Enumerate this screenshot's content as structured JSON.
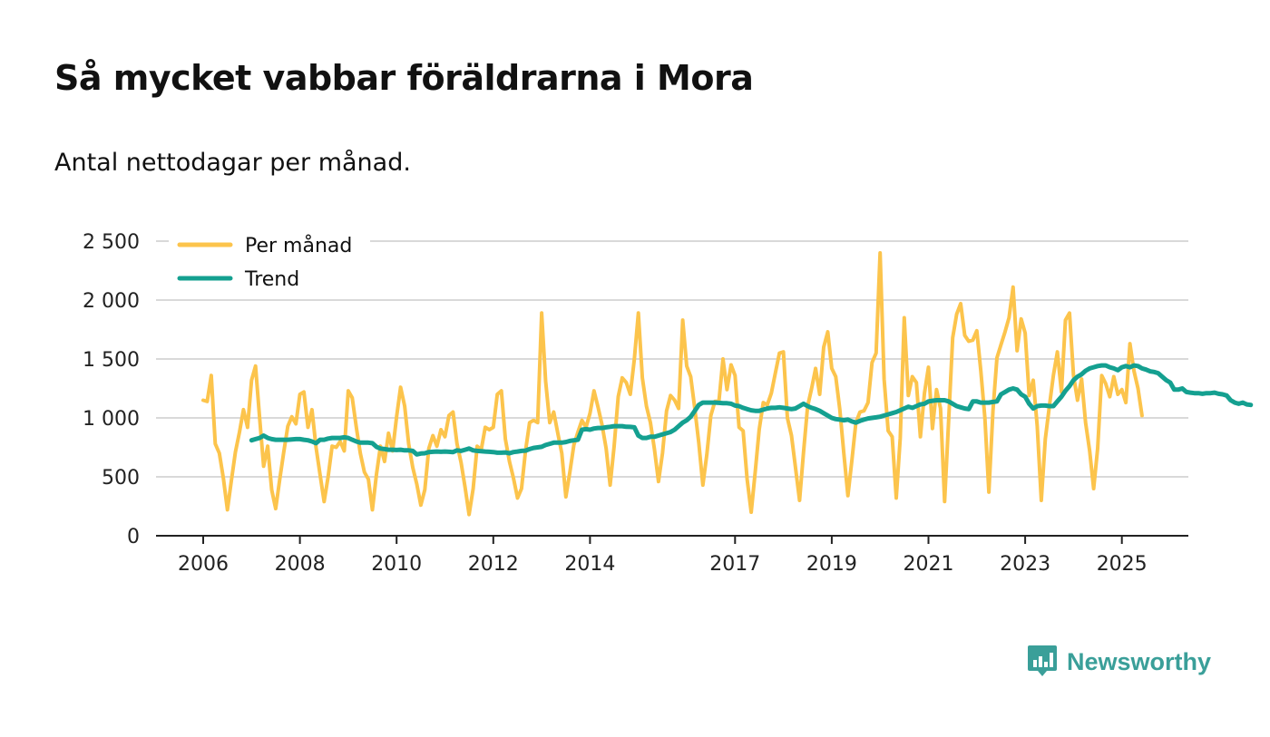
{
  "chart_data": {
    "type": "line",
    "title": "Så mycket vabbar föräldrarna i Mora",
    "subtitle": "Antal nettodagar per månad.",
    "xlabel": "",
    "ylabel": "",
    "ylim": [
      0,
      2500
    ],
    "yticks": [
      0,
      500,
      1000,
      1500,
      2000,
      2500
    ],
    "ytick_labels": [
      "0",
      "500",
      "1 000",
      "1 500",
      "2 000",
      "2 500"
    ],
    "xticks": [
      2006,
      2008,
      2010,
      2012,
      2014,
      2017,
      2019,
      2021,
      2023,
      2025
    ],
    "xtick_labels": [
      "2006",
      "2008",
      "2010",
      "2012",
      "2014",
      "2017",
      "2019",
      "2021",
      "2023",
      "2025"
    ],
    "x_start": 2006,
    "x_step_months": 1,
    "legend_position": "top-left",
    "series": [
      {
        "name": "Per månad",
        "color": "#fcc44c",
        "values": [
          1150,
          1140,
          1360,
          780,
          700,
          490,
          220,
          470,
          710,
          880,
          1070,
          920,
          1320,
          1440,
          1000,
          590,
          760,
          390,
          230,
          480,
          710,
          930,
          1010,
          950,
          1200,
          1220,
          920,
          1070,
          750,
          520,
          290,
          500,
          760,
          750,
          800,
          720,
          1230,
          1170,
          920,
          700,
          540,
          480,
          220,
          520,
          760,
          630,
          870,
          720,
          1010,
          1260,
          1100,
          780,
          580,
          440,
          260,
          390,
          740,
          850,
          760,
          900,
          840,
          1020,
          1050,
          780,
          620,
          410,
          180,
          400,
          760,
          730,
          920,
          900,
          920,
          1200,
          1230,
          820,
          630,
          490,
          320,
          400,
          720,
          960,
          980,
          960,
          1890,
          1310,
          960,
          1050,
          870,
          700,
          330,
          540,
          770,
          880,
          980,
          920,
          1040,
          1230,
          1090,
          940,
          740,
          430,
          760,
          1180,
          1340,
          1300,
          1200,
          1500,
          1890,
          1340,
          1100,
          960,
          730,
          460,
          700,
          1060,
          1190,
          1150,
          1080,
          1830,
          1440,
          1350,
          1080,
          790,
          430,
          690,
          1020,
          1140,
          1140,
          1500,
          1240,
          1450,
          1360,
          920,
          890,
          480,
          200,
          540,
          900,
          1130,
          1110,
          1210,
          1380,
          1550,
          1560,
          1000,
          850,
          580,
          300,
          710,
          1100,
          1250,
          1420,
          1200,
          1600,
          1730,
          1420,
          1350,
          1070,
          700,
          340,
          640,
          960,
          1050,
          1060,
          1130,
          1470,
          1550,
          2400,
          1330,
          890,
          840,
          320,
          830,
          1850,
          1190,
          1350,
          1300,
          840,
          1210,
          1430,
          910,
          1240,
          1080,
          290,
          970,
          1680,
          1880,
          1970,
          1700,
          1650,
          1660,
          1740,
          1400,
          1000,
          370,
          1060,
          1510,
          1620,
          1730,
          1850,
          2110,
          1570,
          1840,
          1720,
          1190,
          1320,
          930,
          300,
          820,
          1100,
          1360,
          1560,
          1220,
          1830,
          1890,
          1360,
          1150,
          1330,
          960,
          720,
          400,
          740,
          1360,
          1290,
          1180,
          1350,
          1200,
          1240,
          1130,
          1630,
          1400,
          1250,
          1020
        ]
      },
      {
        "name": "Trend",
        "color": "#14a090",
        "values": [
          null,
          null,
          null,
          null,
          null,
          null,
          null,
          null,
          null,
          null,
          null,
          null,
          810,
          820,
          830,
          850,
          830,
          820,
          815,
          815,
          815,
          815,
          818,
          820,
          820,
          815,
          810,
          800,
          785,
          815,
          815,
          825,
          830,
          830,
          830,
          835,
          830,
          815,
          800,
          790,
          790,
          790,
          785,
          755,
          740,
          735,
          730,
          730,
          728,
          730,
          725,
          725,
          720,
          690,
          698,
          700,
          710,
          712,
          715,
          712,
          715,
          712,
          710,
          725,
          720,
          730,
          740,
          725,
          720,
          718,
          715,
          712,
          710,
          705,
          705,
          707,
          700,
          710,
          715,
          720,
          722,
          735,
          745,
          750,
          755,
          770,
          780,
          790,
          790,
          790,
          795,
          805,
          810,
          815,
          900,
          905,
          900,
          910,
          915,
          915,
          920,
          925,
          930,
          930,
          930,
          925,
          924,
          920,
          850,
          830,
          830,
          840,
          840,
          850,
          860,
          870,
          880,
          900,
          930,
          960,
          980,
          1010,
          1060,
          1110,
          1130,
          1130,
          1130,
          1130,
          1128,
          1125,
          1125,
          1120,
          1105,
          1100,
          1085,
          1075,
          1065,
          1060,
          1060,
          1070,
          1080,
          1085,
          1085,
          1090,
          1085,
          1080,
          1075,
          1080,
          1100,
          1120,
          1100,
          1085,
          1075,
          1060,
          1040,
          1020,
          1000,
          990,
          985,
          980,
          985,
          970,
          960,
          975,
          985,
          995,
          1000,
          1005,
          1010,
          1020,
          1030,
          1040,
          1050,
          1065,
          1080,
          1095,
          1085,
          1100,
          1115,
          1120,
          1140,
          1145,
          1150,
          1150,
          1150,
          1140,
          1120,
          1100,
          1090,
          1080,
          1075,
          1140,
          1140,
          1130,
          1130,
          1130,
          1135,
          1140,
          1200,
          1220,
          1240,
          1250,
          1240,
          1200,
          1180,
          1120,
          1080,
          1100,
          1105,
          1105,
          1100,
          1100,
          1140,
          1180,
          1230,
          1270,
          1320,
          1350,
          1370,
          1400,
          1420,
          1430,
          1440,
          1445,
          1445,
          1430,
          1420,
          1405,
          1430,
          1440,
          1430,
          1445,
          1440,
          1420,
          1410,
          1395,
          1390,
          1380,
          1350,
          1320,
          1300,
          1240,
          1240,
          1250,
          1220,
          1215,
          1210,
          1210,
          1205,
          1210,
          1210,
          1215,
          1205,
          1200,
          1190,
          1150,
          1130,
          1120,
          1130,
          1115,
          1110
        ]
      }
    ]
  },
  "brand": {
    "name": "Newsworthy",
    "icon": "newsworthy-logo-icon"
  }
}
